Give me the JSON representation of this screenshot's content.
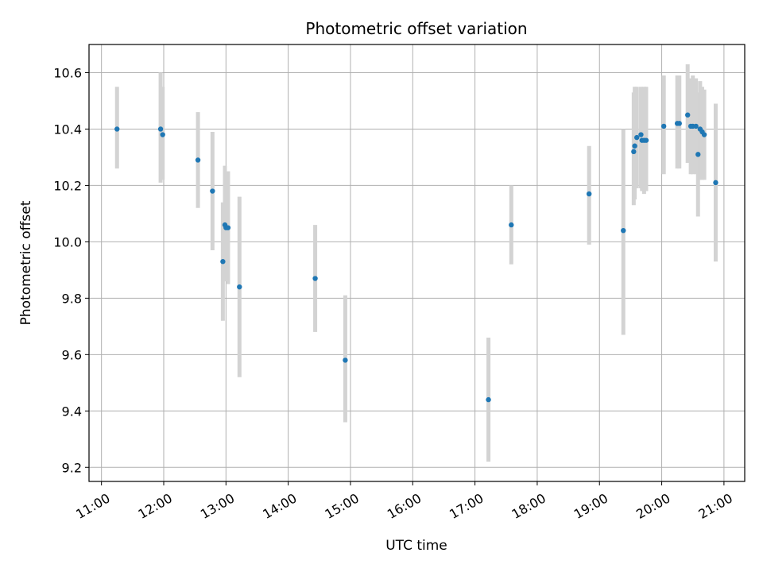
{
  "chart_data": {
    "type": "scatter",
    "title": "Photometric offset variation",
    "xlabel": "UTC time",
    "ylabel": "Photometric offset",
    "x_tick_labels": [
      "11:00",
      "12:00",
      "13:00",
      "14:00",
      "15:00",
      "16:00",
      "17:00",
      "18:00",
      "19:00",
      "20:00",
      "21:00"
    ],
    "y_tick_labels": [
      "9.2",
      "9.4",
      "9.6",
      "9.8",
      "10.0",
      "10.2",
      "10.4",
      "10.6"
    ],
    "x_ticks": [
      "11:00",
      "12:00",
      "13:00",
      "14:00",
      "15:00",
      "16:00",
      "17:00",
      "18:00",
      "19:00",
      "20:00",
      "21:00"
    ],
    "y_ticks": [
      9.2,
      9.4,
      9.6,
      9.8,
      10.0,
      10.2,
      10.4,
      10.6
    ],
    "xlim": [
      "10:48",
      "21:20"
    ],
    "ylim": [
      9.15,
      10.7
    ],
    "grid": true,
    "point_color": "#1f77b4",
    "errorbar_color": "#d3d3d3",
    "points": [
      {
        "x": "11:15",
        "y": 10.4,
        "ylow": 10.26,
        "yhigh": 10.55
      },
      {
        "x": "11:57",
        "y": 10.4,
        "ylow": 10.21,
        "yhigh": 10.6
      },
      {
        "x": "11:59",
        "y": 10.38,
        "ylow": 10.22,
        "yhigh": 10.55
      },
      {
        "x": "12:33",
        "y": 10.29,
        "ylow": 10.12,
        "yhigh": 10.46
      },
      {
        "x": "12:47",
        "y": 10.18,
        "ylow": 9.97,
        "yhigh": 10.39
      },
      {
        "x": "12:57",
        "y": 9.93,
        "ylow": 9.72,
        "yhigh": 10.14
      },
      {
        "x": "12:59",
        "y": 10.06,
        "ylow": 9.86,
        "yhigh": 10.27
      },
      {
        "x": "13:00",
        "y": 10.05,
        "ylow": 9.87,
        "yhigh": 10.23
      },
      {
        "x": "13:02",
        "y": 10.05,
        "ylow": 9.85,
        "yhigh": 10.25
      },
      {
        "x": "13:13",
        "y": 9.84,
        "ylow": 9.52,
        "yhigh": 10.16
      },
      {
        "x": "14:26",
        "y": 9.87,
        "ylow": 9.68,
        "yhigh": 10.06
      },
      {
        "x": "14:55",
        "y": 9.58,
        "ylow": 9.36,
        "yhigh": 9.81
      },
      {
        "x": "17:13",
        "y": 9.44,
        "ylow": 9.22,
        "yhigh": 9.66
      },
      {
        "x": "17:35",
        "y": 10.06,
        "ylow": 9.92,
        "yhigh": 10.2
      },
      {
        "x": "18:50",
        "y": 10.17,
        "ylow": 9.99,
        "yhigh": 10.34
      },
      {
        "x": "19:23",
        "y": 10.04,
        "ylow": 9.67,
        "yhigh": 10.4
      },
      {
        "x": "19:33",
        "y": 10.32,
        "ylow": 10.13,
        "yhigh": 10.53
      },
      {
        "x": "19:34",
        "y": 10.34,
        "ylow": 10.15,
        "yhigh": 10.55
      },
      {
        "x": "19:36",
        "y": 10.37,
        "ylow": 10.19,
        "yhigh": 10.55
      },
      {
        "x": "19:40",
        "y": 10.38,
        "ylow": 10.19,
        "yhigh": 10.55
      },
      {
        "x": "19:41",
        "y": 10.36,
        "ylow": 10.18,
        "yhigh": 10.54
      },
      {
        "x": "19:43",
        "y": 10.36,
        "ylow": 10.17,
        "yhigh": 10.55
      },
      {
        "x": "19:45",
        "y": 10.36,
        "ylow": 10.18,
        "yhigh": 10.55
      },
      {
        "x": "20:02",
        "y": 10.41,
        "ylow": 10.24,
        "yhigh": 10.59
      },
      {
        "x": "20:15",
        "y": 10.42,
        "ylow": 10.26,
        "yhigh": 10.59
      },
      {
        "x": "20:17",
        "y": 10.42,
        "ylow": 10.26,
        "yhigh": 10.59
      },
      {
        "x": "20:25",
        "y": 10.45,
        "ylow": 10.28,
        "yhigh": 10.63
      },
      {
        "x": "20:28",
        "y": 10.41,
        "ylow": 10.24,
        "yhigh": 10.58
      },
      {
        "x": "20:30",
        "y": 10.41,
        "ylow": 10.24,
        "yhigh": 10.59
      },
      {
        "x": "20:33",
        "y": 10.41,
        "ylow": 10.24,
        "yhigh": 10.58
      },
      {
        "x": "20:35",
        "y": 10.31,
        "ylow": 10.09,
        "yhigh": 10.53
      },
      {
        "x": "20:37",
        "y": 10.4,
        "ylow": 10.22,
        "yhigh": 10.57
      },
      {
        "x": "20:39",
        "y": 10.39,
        "ylow": 10.22,
        "yhigh": 10.55
      },
      {
        "x": "20:41",
        "y": 10.38,
        "ylow": 10.22,
        "yhigh": 10.54
      },
      {
        "x": "20:52",
        "y": 10.21,
        "ylow": 9.93,
        "yhigh": 10.49
      }
    ]
  }
}
